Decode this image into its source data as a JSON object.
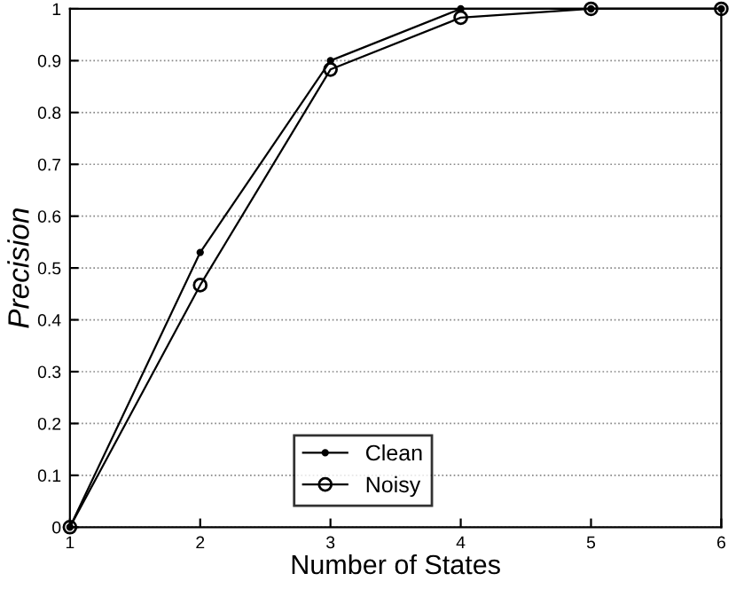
{
  "chart_data": {
    "type": "line",
    "xlabel": "Number of States",
    "ylabel": "Precision",
    "x": [
      1,
      2,
      3,
      4,
      5,
      6
    ],
    "series": [
      {
        "name": "Clean",
        "color": "#000000",
        "marker": "circle",
        "values": [
          0,
          0.53,
          0.9,
          1.0,
          1.0,
          1.0
        ]
      },
      {
        "name": "Noisy",
        "color": "#000000",
        "marker": "circle",
        "values": [
          0,
          0.467,
          0.883,
          0.983,
          1.0,
          1.0
        ]
      }
    ],
    "xlim": [
      1,
      6
    ],
    "xticks": [
      1,
      2,
      3,
      4,
      5,
      6
    ],
    "ylim": [
      0,
      1
    ],
    "yticks": [
      0,
      0.1,
      0.2,
      0.3,
      0.4,
      0.5,
      0.6,
      0.7,
      0.8,
      0.9,
      1
    ],
    "grid": "y",
    "legend": "bottom",
    "line_style": "solid"
  }
}
